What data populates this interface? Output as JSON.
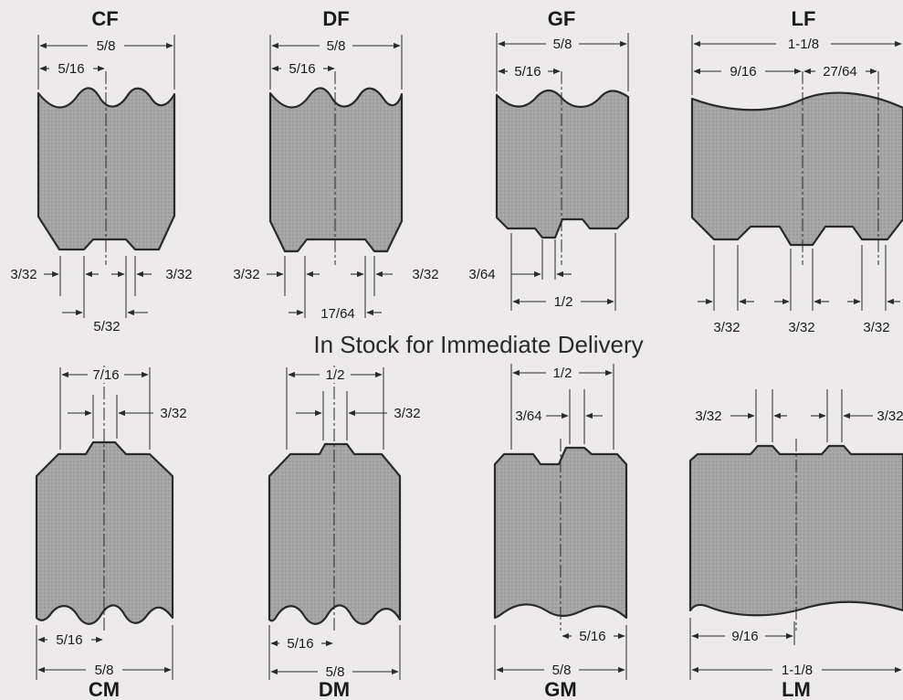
{
  "banner": "In Stock for Immediate Delivery",
  "profiles": {
    "cf": {
      "name": "CF",
      "dims": [
        "5/8",
        "5/16",
        "3/32",
        "3/32",
        "5/32"
      ]
    },
    "df": {
      "name": "DF",
      "dims": [
        "5/8",
        "5/16",
        "3/32",
        "3/32",
        "17/64"
      ]
    },
    "gf": {
      "name": "GF",
      "dims": [
        "5/8",
        "5/16",
        "3/64",
        "1/2"
      ]
    },
    "lf": {
      "name": "LF",
      "dims": [
        "1-1/8",
        "9/16",
        "27/64",
        "3/32",
        "3/32",
        "3/32"
      ]
    },
    "cm": {
      "name": "CM",
      "dims": [
        "7/16",
        "3/32",
        "5/16",
        "5/8"
      ]
    },
    "dm": {
      "name": "DM",
      "dims": [
        "1/2",
        "3/32",
        "5/16",
        "5/8"
      ]
    },
    "gm": {
      "name": "GM",
      "dims": [
        "1/2",
        "3/64",
        "5/16",
        "5/8"
      ]
    },
    "lm": {
      "name": "LM",
      "dims": [
        "3/32",
        "3/32",
        "9/16",
        "1-1/8"
      ]
    }
  },
  "colors": {
    "background": "#eceaea",
    "profile_fill": "#a9a8a8",
    "line": "#2a2a2a"
  }
}
